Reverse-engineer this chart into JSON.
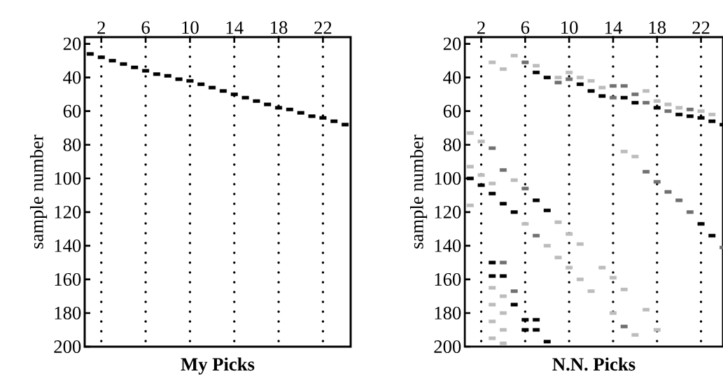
{
  "chart_data": [
    {
      "type": "scatter",
      "xlabel": "My Picks",
      "ylabel": "sample number",
      "marker": "square",
      "xlim": [
        0.5,
        24.5
      ],
      "ylim": [
        200,
        16
      ],
      "xticks": [
        2,
        6,
        10,
        14,
        18,
        22
      ],
      "yticks": [
        20,
        40,
        60,
        80,
        100,
        120,
        140,
        160,
        180,
        200
      ],
      "grid": "x",
      "series": [
        {
          "color": "#000000",
          "x": [
            1,
            2,
            3,
            4,
            5,
            6,
            7,
            8,
            9,
            10,
            11,
            12,
            13,
            14,
            15,
            16,
            17,
            18,
            19,
            20,
            21,
            22,
            23,
            24
          ],
          "values": [
            26,
            28,
            30,
            32,
            34,
            36,
            38,
            39,
            41,
            42,
            44,
            46,
            48,
            50,
            52,
            54,
            56,
            58,
            59,
            61,
            63,
            64,
            66,
            68
          ]
        }
      ]
    },
    {
      "type": "scatter",
      "xlabel": "N.N. Picks",
      "ylabel": "sample number",
      "xlim": [
        0.5,
        24
      ],
      "marker": "square",
      "ylim": [
        200,
        16
      ],
      "xticks": [
        2,
        6,
        10,
        14,
        18,
        22
      ],
      "yticks": [
        20,
        40,
        60,
        80,
        100,
        120,
        140,
        160,
        180,
        200
      ],
      "grid": "x",
      "series": [
        {
          "color": "#bcbcbc",
          "x": [
            1,
            1,
            1,
            2,
            2,
            3,
            3,
            4,
            5,
            5,
            6,
            8,
            9,
            9,
            10,
            10,
            11,
            11,
            12,
            13,
            14,
            14,
            15,
            15,
            16,
            16,
            17,
            18,
            7,
            9,
            10,
            11,
            12,
            13,
            17,
            18,
            19,
            20,
            22,
            23,
            3,
            3,
            3,
            3,
            4,
            4,
            4,
            4
          ],
          "values": [
            73,
            93,
            116,
            78,
            98,
            103,
            31,
            35,
            27,
            101,
            127,
            140,
            126,
            147,
            133,
            153,
            139,
            160,
            167,
            153,
            159,
            180,
            166,
            84,
            87,
            193,
            178,
            190,
            33,
            40,
            37,
            40,
            42,
            46,
            48,
            54,
            56,
            58,
            60,
            62,
            165,
            175,
            185,
            195,
            170,
            180,
            190,
            198
          ]
        },
        {
          "color": "#707070",
          "x": [
            6,
            6,
            9,
            10,
            14,
            17,
            19,
            21,
            17,
            18,
            19,
            20,
            21,
            24,
            4,
            5,
            3,
            4,
            7,
            15,
            14,
            15,
            16
          ],
          "values": [
            106,
            31,
            43,
            41,
            52,
            55,
            60,
            59,
            96,
            102,
            108,
            113,
            120,
            141,
            150,
            167,
            82,
            95,
            134,
            188,
            45,
            45,
            50
          ]
        },
        {
          "color": "#000000",
          "x": [
            1,
            2,
            3,
            4,
            5,
            7,
            8,
            7,
            8,
            11,
            12,
            13,
            15,
            16,
            18,
            20,
            21,
            22,
            23,
            24,
            22,
            23,
            3,
            3,
            4,
            5,
            6,
            6,
            7,
            7,
            8
          ],
          "values": [
            100,
            104,
            109,
            115,
            120,
            113,
            119,
            37,
            40,
            44,
            48,
            51,
            52,
            55,
            58,
            62,
            63,
            64,
            66,
            68,
            127,
            134,
            150,
            158,
            158,
            175,
            184,
            190,
            184,
            190,
            197
          ]
        }
      ]
    }
  ]
}
